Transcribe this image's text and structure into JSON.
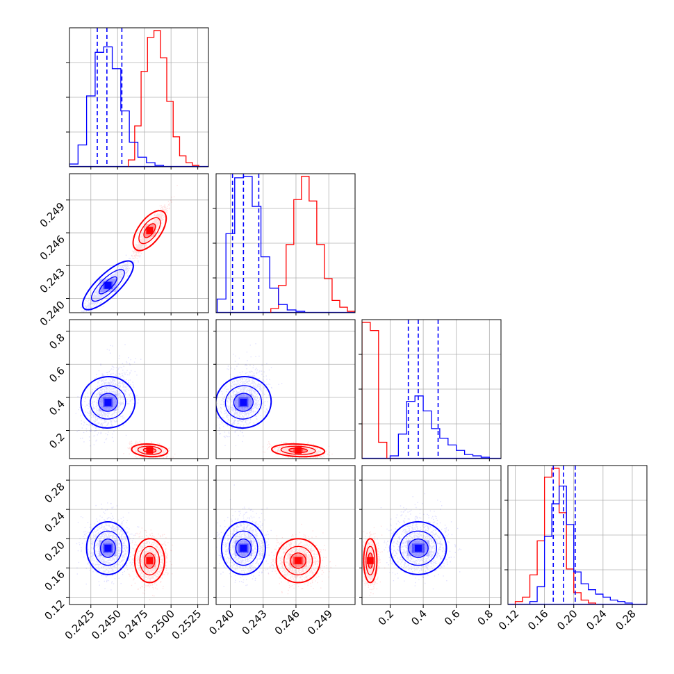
{
  "chart_data": {
    "type": "corner",
    "grid": true,
    "colors": {
      "blue": "#0000ff",
      "red": "#ff0000",
      "grid": "#b0b0b0"
    },
    "params": [
      {
        "range": [
          0.2405,
          0.2535
        ],
        "ticks": [
          0.2425,
          0.245,
          0.2475,
          0.25,
          0.2525
        ],
        "tick_labels": [
          "0.2425",
          "0.2450",
          "0.2475",
          "0.2500",
          "0.2525"
        ]
      },
      {
        "range": [
          0.2387,
          0.2514
        ],
        "ticks": [
          0.24,
          0.243,
          0.246,
          0.249
        ],
        "tick_labels": [
          "0.240",
          "0.243",
          "0.246",
          "0.249"
        ]
      },
      {
        "range": [
          0.03,
          0.87
        ],
        "ticks": [
          0.2,
          0.4,
          0.6,
          0.8
        ],
        "tick_labels": [
          "0.2",
          "0.4",
          "0.6",
          "0.8"
        ]
      },
      {
        "range": [
          0.11,
          0.3
        ],
        "ticks": [
          0.12,
          0.16,
          0.2,
          0.24,
          0.28
        ],
        "tick_labels": [
          "0.12",
          "0.16",
          "0.20",
          "0.24",
          "0.28"
        ]
      }
    ],
    "blue": {
      "mean": [
        0.2441,
        0.2412,
        0.37,
        0.187
      ],
      "sd": [
        0.001,
        0.001,
        0.085,
        0.018
      ],
      "quantiles": [
        [
          0.2431,
          0.244,
          0.2454
        ],
        [
          0.2402,
          0.2412,
          0.2426
        ],
        [
          0.31,
          0.37,
          0.49
        ],
        [
          0.172,
          0.186,
          0.202
        ]
      ],
      "hist": [
        {
          "start": 0.2405,
          "width": 0.0008,
          "counts": [
            2,
            16,
            52,
            84,
            88,
            72,
            41,
            18,
            7,
            3,
            1
          ]
        },
        {
          "start": 0.2388,
          "width": 0.0008,
          "counts": [
            10,
            58,
            99,
            100,
            78,
            41,
            18,
            6,
            2,
            1
          ]
        },
        {
          "start": 0.15,
          "width": 0.05,
          "counts": [
            0,
            2,
            18,
            42,
            46,
            35,
            22,
            15,
            10,
            6,
            3,
            2,
            1
          ]
        },
        {
          "start": 0.13,
          "width": 0.01,
          "counts": [
            0,
            2,
            12,
            46,
            68,
            80,
            54,
            22,
            14,
            10,
            7,
            5,
            3,
            2,
            1
          ]
        }
      ]
    },
    "red": {
      "mean": [
        0.248,
        0.2462,
        0.08,
        0.17
      ],
      "sd": [
        0.0007,
        0.001,
        0.02,
        0.015
      ],
      "hist": [
        {
          "start": 0.246,
          "width": 0.0006,
          "counts": [
            5,
            30,
            70,
            95,
            100,
            80,
            48,
            22,
            8,
            3,
            1
          ]
        },
        {
          "start": 0.2437,
          "width": 0.0007,
          "counts": [
            3,
            20,
            50,
            83,
            100,
            82,
            50,
            25,
            9,
            4,
            1
          ]
        },
        {
          "start": 0.03,
          "width": 0.05,
          "counts": [
            100,
            94,
            12,
            0
          ]
        },
        {
          "start": 0.12,
          "width": 0.01,
          "counts": [
            2,
            5,
            20,
            43,
            86,
            92,
            62,
            24,
            8,
            3,
            1
          ]
        }
      ]
    }
  }
}
